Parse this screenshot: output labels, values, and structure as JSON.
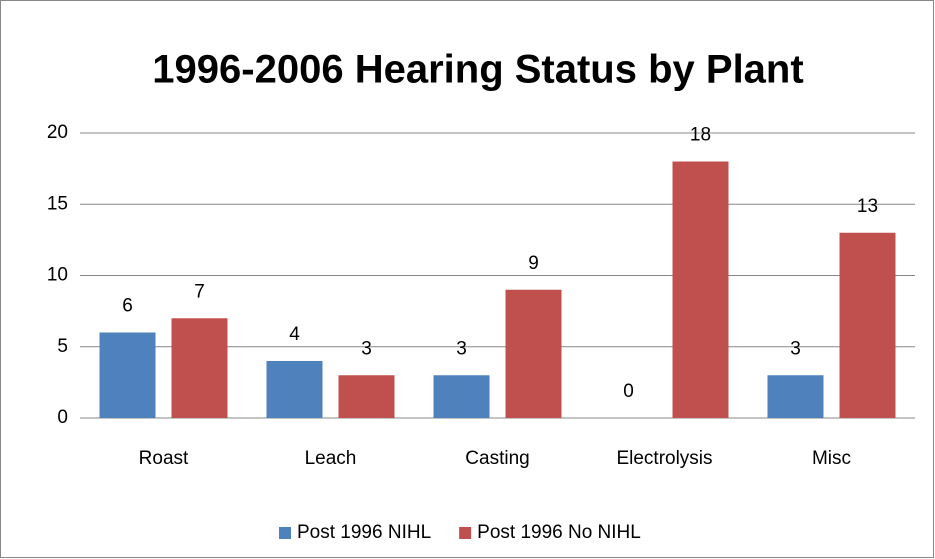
{
  "chart_data": {
    "type": "bar",
    "title": "1996-2006 Hearing Status by Plant",
    "categories": [
      "Roast",
      "Leach",
      "Casting",
      "Electrolysis",
      "Misc"
    ],
    "series": [
      {
        "name": "Post 1996 NIHL",
        "color": "#4f81bd",
        "values": [
          6,
          4,
          3,
          0,
          3
        ]
      },
      {
        "name": "Post 1996 No NIHL",
        "color": "#c0504d",
        "values": [
          7,
          3,
          9,
          18,
          13
        ]
      }
    ],
    "ylim": [
      0,
      20
    ],
    "yticks": [
      0,
      5,
      10,
      15,
      20
    ],
    "grid": true,
    "legend": "bottom"
  }
}
